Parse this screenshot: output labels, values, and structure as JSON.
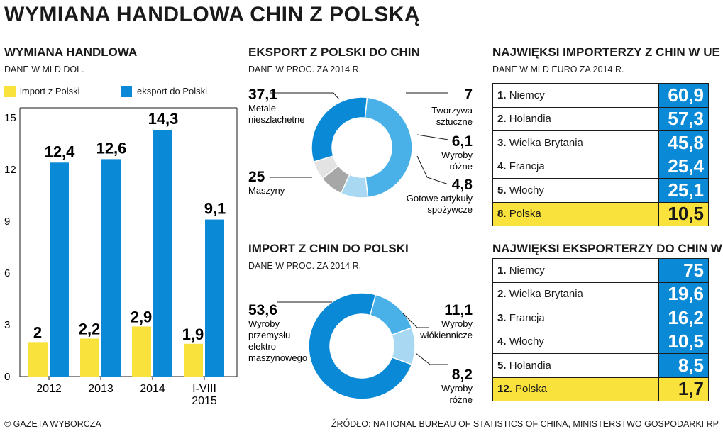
{
  "title": "WYMIANA HANDLOWA CHIN Z POLSKĄ",
  "footer": {
    "left": "© GAZETA WYBORCZA",
    "right": "ŹRÓDŁO: NATIONAL BUREAU OF STATISTICS OF CHINA, MINISTERSTWO GOSPODARKI RP"
  },
  "colors": {
    "blue": "#0a8ad6",
    "light_blue": "#4ab1e8",
    "pale_blue": "#a8d8f2",
    "gray": "#a7a7a7",
    "light_gray": "#e3e3e3",
    "yellow": "#f9e23b"
  },
  "bar_section": {
    "title": "WYMIANA HANDLOWA",
    "subtitle": "DANE W MLD DOL.",
    "legend_import": "import z Polski",
    "legend_export": "eksport do Polski"
  },
  "export_section": {
    "title": "EKSPORT Z POLSKI DO CHIN",
    "subtitle": "DANE W PROC. ZA 2014 R."
  },
  "import_section": {
    "title": "IMPORT Z CHIN DO POLSKI",
    "subtitle": "DANE W PROC. ZA 2014 R."
  },
  "importers": {
    "title": "NAJWIĘKSI IMPORTERZY Z CHIN W UE",
    "subtitle": "DANE W MLD EURO ZA 2014 R.",
    "rows": [
      {
        "rank": "1.",
        "name": "Niemcy",
        "value": "60,9",
        "highlight": false
      },
      {
        "rank": "2.",
        "name": "Holandia",
        "value": "57,3",
        "highlight": false
      },
      {
        "rank": "3.",
        "name": "Wielka Brytania",
        "value": "45,8",
        "highlight": false
      },
      {
        "rank": "4.",
        "name": "Francja",
        "value": "25,4",
        "highlight": false
      },
      {
        "rank": "5.",
        "name": "Włochy",
        "value": "25,1",
        "highlight": false
      },
      {
        "rank": "8.",
        "name": "Polska",
        "value": "10,5",
        "highlight": true
      }
    ]
  },
  "exporters": {
    "title": "NAJWIĘKSI EKSPORTERZY DO CHIN W UE",
    "rows": [
      {
        "rank": "1.",
        "name": "Niemcy",
        "value": "75",
        "highlight": false
      },
      {
        "rank": "2.",
        "name": "Wielka Brytania",
        "value": "19,6",
        "highlight": false
      },
      {
        "rank": "3.",
        "name": "Francja",
        "value": "16,2",
        "highlight": false
      },
      {
        "rank": "4.",
        "name": "Włochy",
        "value": "10,5",
        "highlight": false
      },
      {
        "rank": "5.",
        "name": "Holandia",
        "value": "8,5",
        "highlight": false
      },
      {
        "rank": "12.",
        "name": "Polska",
        "value": "1,7",
        "highlight": true
      }
    ]
  },
  "chart_data": [
    {
      "type": "bar",
      "title": "WYMIANA HANDLOWA",
      "subtitle": "DANE W MLD DOL.",
      "categories": [
        [
          "2012"
        ],
        [
          "2013"
        ],
        [
          "2014"
        ],
        [
          "I-VIII",
          "2015"
        ]
      ],
      "series": [
        {
          "name": "import z Polski",
          "color": "#f9e23b",
          "values": [
            2,
            2.2,
            2.9,
            1.9
          ],
          "labels": [
            "2",
            "2,2",
            "2,9",
            "1,9"
          ]
        },
        {
          "name": "eksport do Polski",
          "color": "#0a8ad6",
          "values": [
            12.4,
            12.6,
            14.3,
            9.1
          ],
          "labels": [
            "12,4",
            "12,6",
            "14,3",
            "9,1"
          ]
        }
      ],
      "yticks": [
        0,
        3,
        6,
        9,
        12,
        15
      ],
      "ylim": [
        0,
        15
      ],
      "grid": false,
      "legend": "top-left"
    },
    {
      "type": "pie",
      "title": "EKSPORT Z POLSKI DO CHIN",
      "subtitle": "DANE W PROC. ZA 2014 R.",
      "slices": [
        {
          "name": "Metale nieszlachetne",
          "value": 37.1,
          "label": "37,1",
          "color": "#4ab1e8"
        },
        {
          "name": "Tworzywa sztuczne",
          "value": 7,
          "label": "7",
          "color": "#a8d8f2"
        },
        {
          "name": "Wyroby różne",
          "value": 6.1,
          "label": "6,1",
          "color": "#a7a7a7"
        },
        {
          "name": "Gotowe artykuły spożywcze",
          "value": 4.8,
          "label": "4,8",
          "color": "#e3e3e3"
        },
        {
          "name": "Maszyny",
          "value": 25,
          "label": "25",
          "color": "#0a8ad6"
        }
      ]
    },
    {
      "type": "pie",
      "title": "IMPORT Z CHIN DO POLSKI",
      "subtitle": "DANE W PROC. ZA 2014 R.",
      "slices": [
        {
          "name": "Wyroby włókiennicze",
          "value": 11.1,
          "label": "11,1",
          "color": "#4ab1e8"
        },
        {
          "name": "Wyroby różne",
          "value": 8.2,
          "label": "8,2",
          "color": "#a8d8f2"
        },
        {
          "name": "Wyroby przemysłu elektro-maszynowego",
          "value": 53.6,
          "label": "53,6",
          "color": "#0a8ad6"
        }
      ]
    }
  ]
}
